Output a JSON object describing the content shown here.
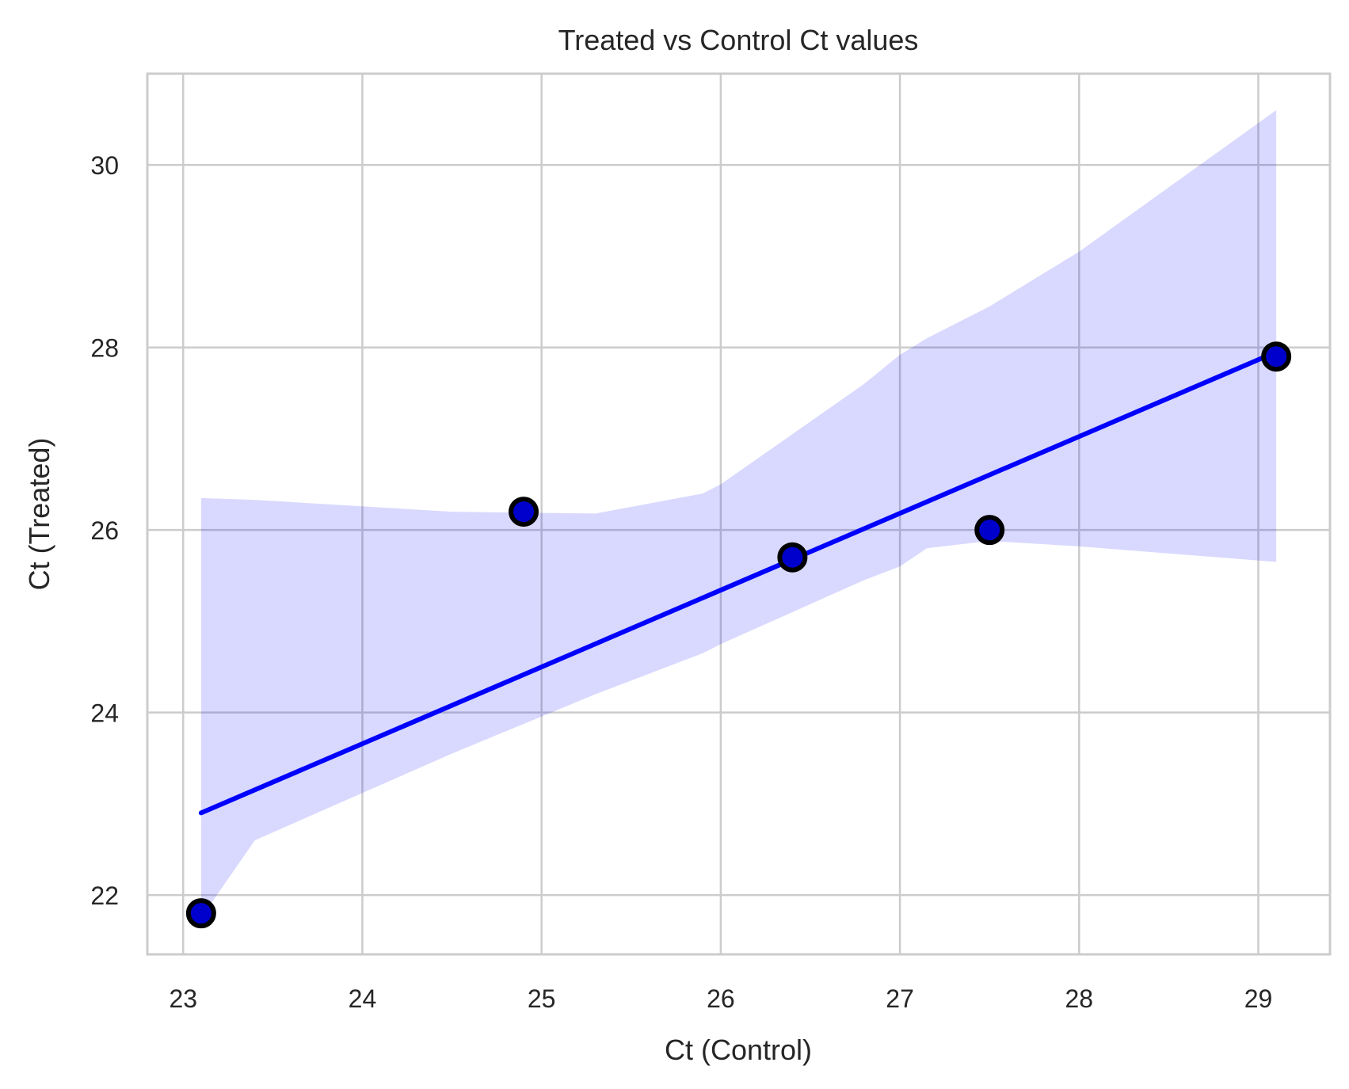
{
  "chart_data": {
    "type": "scatter",
    "title": "Treated vs Control Ct values",
    "xlabel": "Ct (Control)",
    "ylabel": "Ct (Treated)",
    "xlim": [
      22.8,
      29.4
    ],
    "ylim": [
      21.35,
      31.0
    ],
    "xticks": [
      23,
      24,
      25,
      26,
      27,
      28,
      29
    ],
    "yticks": [
      22,
      24,
      26,
      28,
      30
    ],
    "grid": true,
    "points": [
      {
        "x": 23.1,
        "y": 21.8
      },
      {
        "x": 24.9,
        "y": 26.2
      },
      {
        "x": 26.4,
        "y": 25.7
      },
      {
        "x": 27.5,
        "y": 26.0
      },
      {
        "x": 29.1,
        "y": 27.9
      }
    ],
    "regression_line": {
      "x": [
        23.1,
        29.1
      ],
      "y": [
        22.9,
        27.95
      ]
    },
    "confidence_band": {
      "x": [
        23.1,
        23.4,
        24.5,
        25.3,
        25.9,
        26.0,
        26.8,
        27.0,
        27.15,
        27.5,
        28.0,
        29.1
      ],
      "upper": [
        26.35,
        26.33,
        26.2,
        26.18,
        26.4,
        26.5,
        27.6,
        27.92,
        28.1,
        28.45,
        29.05,
        30.6
      ],
      "lower": [
        21.75,
        22.6,
        23.55,
        24.2,
        24.65,
        24.75,
        25.45,
        25.6,
        25.8,
        25.88,
        25.82,
        25.65
      ]
    },
    "colors": {
      "point_fill": "#0000cc",
      "point_edge": "#000000",
      "line": "#0000ff",
      "band": "#0000ff",
      "grid": "#cccccc",
      "frame": "#cccccc"
    }
  }
}
